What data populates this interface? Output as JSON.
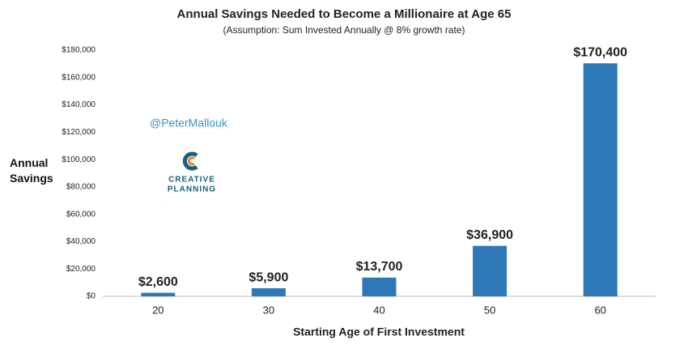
{
  "chart_data": {
    "type": "bar",
    "title": "Annual Savings Needed to Become a Millionaire at Age 65",
    "subtitle": "(Assumption: Sum Invested Annually @ 8% growth rate)",
    "x_label": "Starting Age of First Investment",
    "y_label": "Annual Savings",
    "annotations": {
      "handle": "@PeterMallouk",
      "logo": [
        "CREATIVE",
        "PLANNING"
      ]
    },
    "categories": [
      "20",
      "30",
      "40",
      "50",
      "60"
    ],
    "values": [
      2600,
      5900,
      13700,
      36900,
      170400
    ],
    "value_labels": [
      "$2,600",
      "$5,900",
      "$13,700",
      "$36,900",
      "$170,400"
    ],
    "color": "#2e78b7",
    "ylim": [
      0,
      180000
    ],
    "yticks": [
      {
        "value": 0,
        "label": "$0"
      },
      {
        "value": 20000,
        "label": "$20,000"
      },
      {
        "value": 40000,
        "label": "$40,000"
      },
      {
        "value": 60000,
        "label": "$60,000"
      },
      {
        "value": 80000,
        "label": "$80,000"
      },
      {
        "value": 100000,
        "label": "$100,000"
      },
      {
        "value": 120000,
        "label": "$120,000"
      },
      {
        "value": 140000,
        "label": "$140,000"
      },
      {
        "value": 160000,
        "label": "$160,000"
      },
      {
        "value": 180000,
        "label": "$180,000"
      }
    ],
    "grid": false
  }
}
